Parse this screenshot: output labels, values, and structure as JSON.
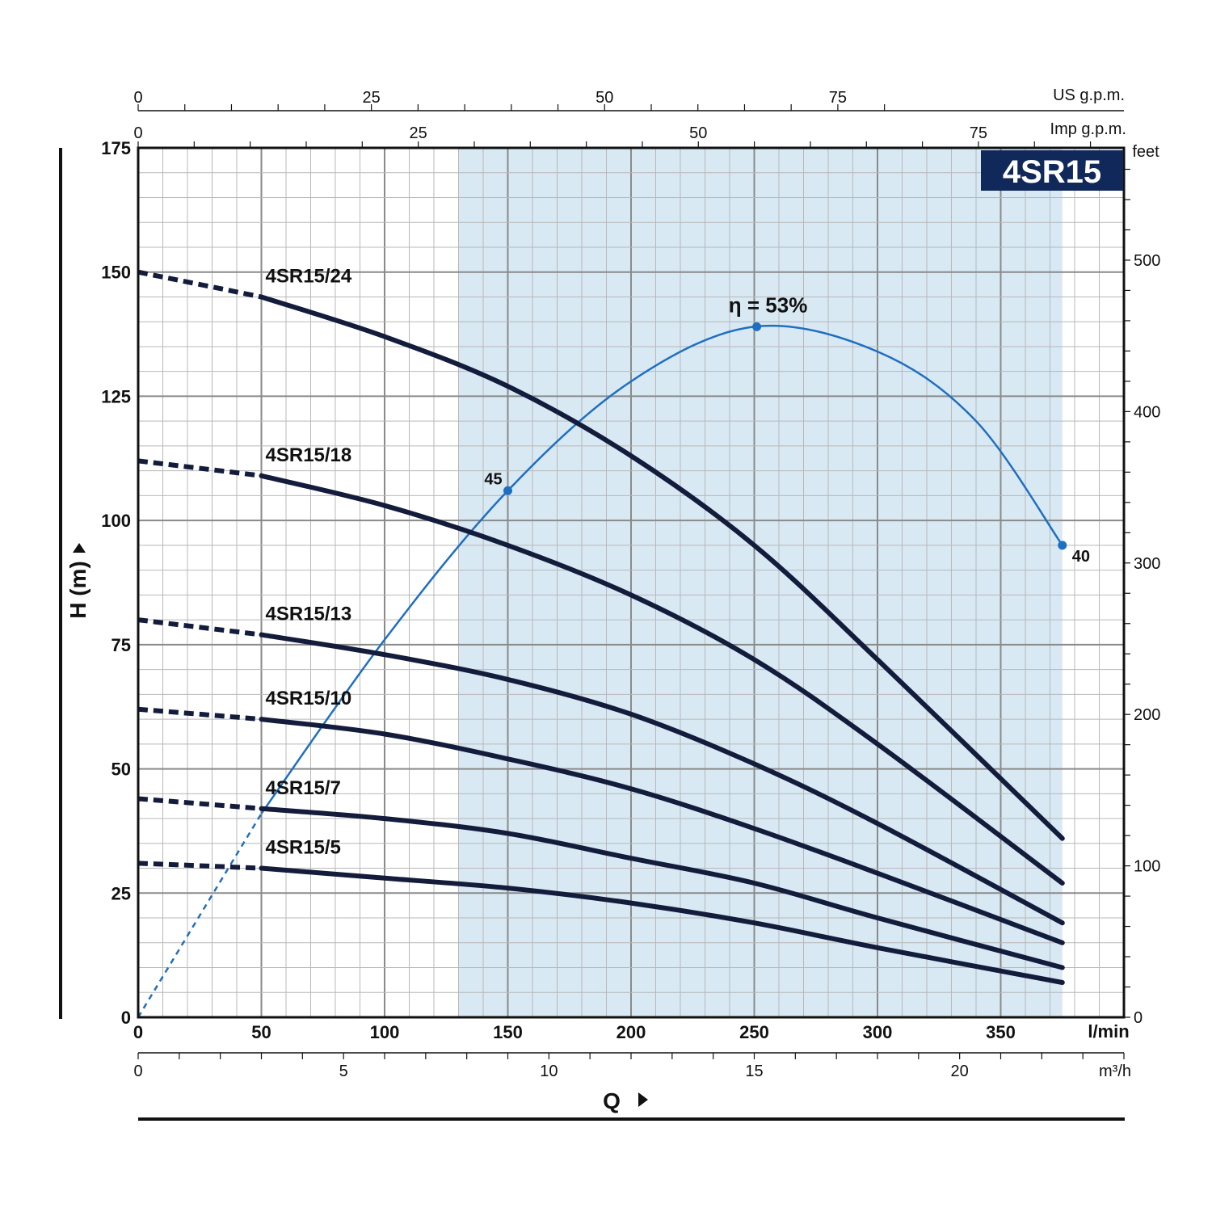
{
  "chart_data": {
    "type": "line",
    "title": "4SR15",
    "colors": {
      "curve": "#141c3c",
      "efficiency": "#1f6fc0",
      "band": "#d8e9f4",
      "badge": "#10285a",
      "grid": "#9a9a9a"
    },
    "xlabel": "Q",
    "x_unit": "l/min",
    "xlim": [
      0,
      400
    ],
    "x_ticks": [
      "0",
      "50",
      "100",
      "150",
      "200",
      "250",
      "300",
      "350"
    ],
    "ylabel": "H (m)",
    "ylim": [
      0,
      175
    ],
    "y_ticks": [
      "0",
      "25",
      "50",
      "75",
      "100",
      "125",
      "150",
      "175"
    ],
    "right_axis": {
      "unit": "feet",
      "ticks": [
        {
          "value": 0,
          "label": "0"
        },
        {
          "value": 100,
          "label": "100"
        },
        {
          "value": 200,
          "label": "200"
        },
        {
          "value": 300,
          "label": "300"
        },
        {
          "value": 400,
          "label": "400"
        },
        {
          "value": 500,
          "label": "500"
        }
      ]
    },
    "secondary_x_axes": {
      "us_gpm": {
        "unit": "US g.p.m.",
        "ticks": [
          {
            "value": 0,
            "label": "0"
          },
          {
            "value": 25,
            "label": "25"
          },
          {
            "value": 50,
            "label": "50"
          },
          {
            "value": 75,
            "label": "75"
          }
        ]
      },
      "imp_gpm": {
        "unit": "Imp g.p.m.",
        "ticks": [
          {
            "value": 0,
            "label": "0"
          },
          {
            "value": 25,
            "label": "25"
          },
          {
            "value": 50,
            "label": "50"
          },
          {
            "value": 75,
            "label": "75"
          }
        ]
      },
      "m3h": {
        "unit": "m³/h",
        "ticks": [
          {
            "value": 0,
            "label": "0"
          },
          {
            "value": 5,
            "label": "5"
          },
          {
            "value": 10,
            "label": "10"
          },
          {
            "value": 15,
            "label": "15"
          },
          {
            "value": 20,
            "label": "20"
          }
        ]
      }
    },
    "recommended_range": [
      130,
      375
    ],
    "series": [
      {
        "name": "4SR15/24",
        "x": [
          0,
          50,
          100,
          150,
          200,
          250,
          300,
          375
        ],
        "y": [
          150,
          145,
          137,
          127,
          113,
          95,
          72,
          36
        ]
      },
      {
        "name": "4SR15/18",
        "x": [
          0,
          50,
          100,
          150,
          200,
          250,
          300,
          375
        ],
        "y": [
          112,
          109,
          103,
          95,
          85,
          72,
          55,
          27
        ]
      },
      {
        "name": "4SR15/13",
        "x": [
          0,
          50,
          100,
          150,
          200,
          250,
          300,
          375
        ],
        "y": [
          80,
          77,
          73,
          68,
          61,
          51,
          39,
          19
        ]
      },
      {
        "name": "4SR15/10",
        "x": [
          0,
          50,
          100,
          150,
          200,
          250,
          300,
          375
        ],
        "y": [
          62,
          60,
          57,
          52,
          46,
          38,
          29,
          15
        ]
      },
      {
        "name": "4SR15/7",
        "x": [
          0,
          50,
          100,
          150,
          200,
          250,
          300,
          375
        ],
        "y": [
          44,
          42,
          40,
          37,
          32,
          27,
          20,
          10
        ]
      },
      {
        "name": "4SR15/5",
        "x": [
          0,
          50,
          100,
          150,
          200,
          250,
          300,
          375
        ],
        "y": [
          31,
          30,
          28,
          26,
          23,
          19,
          14,
          7
        ]
      }
    ],
    "efficiency_curve": {
      "x": [
        0,
        50,
        100,
        150,
        200,
        250,
        300,
        340,
        375
      ],
      "y": [
        0,
        41,
        76,
        106,
        128,
        139,
        134,
        120,
        95
      ],
      "points": [
        {
          "x": 150,
          "y": 106,
          "label": "45"
        },
        {
          "x": 251,
          "y": 139,
          "label": "η = 53%"
        },
        {
          "x": 375,
          "y": 95,
          "label": "40"
        }
      ]
    }
  }
}
